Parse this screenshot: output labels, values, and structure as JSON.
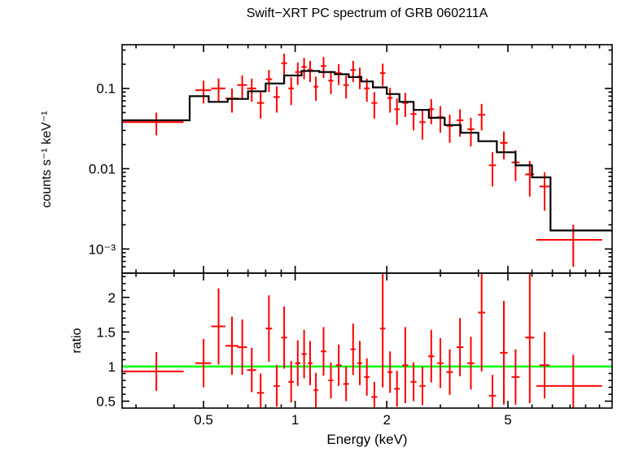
{
  "title": "Swift−XRT PC spectrum of GRB 060211A",
  "colors": {
    "data": "#ff0000",
    "model": "#000000",
    "reference_line": "#00ff00",
    "axis": "#000000",
    "background": "#ffffff"
  },
  "chart_data": {
    "type": "scatter",
    "title": "Swift−XRT PC spectrum of GRB 060211A",
    "xlabel": "Energy (keV)",
    "x_scale": "log",
    "x_range": [
      0.27,
      11.0
    ],
    "x_ticks": [
      0.5,
      1,
      2,
      5
    ],
    "x_tick_labels": [
      "0.5",
      "1",
      "2",
      "5"
    ],
    "legend": "none",
    "grid": false,
    "panels": [
      {
        "name": "spectrum",
        "ylabel": "counts s⁻¹ keV⁻¹",
        "y_scale": "log",
        "y_range": [
          0.0005,
          0.35
        ],
        "y_ticks": [
          0.1,
          0.01,
          0.001
        ],
        "y_tick_labels": [
          "0.1",
          "0.01",
          "10⁻³"
        ],
        "series_name": "observed counts (red crosses: E, ΔE, rate, Δrate)",
        "points": [
          [
            0.35,
            0.08,
            0.038,
            0.012
          ],
          [
            0.5,
            0.03,
            0.095,
            0.03
          ],
          [
            0.56,
            0.03,
            0.1,
            0.033
          ],
          [
            0.62,
            0.03,
            0.075,
            0.025
          ],
          [
            0.67,
            0.025,
            0.11,
            0.035
          ],
          [
            0.72,
            0.025,
            0.1,
            0.032
          ],
          [
            0.77,
            0.02,
            0.066,
            0.024
          ],
          [
            0.82,
            0.02,
            0.13,
            0.04
          ],
          [
            0.87,
            0.02,
            0.078,
            0.028
          ],
          [
            0.92,
            0.02,
            0.205,
            0.065
          ],
          [
            0.97,
            0.02,
            0.1,
            0.038
          ],
          [
            1.02,
            0.02,
            0.16,
            0.05
          ],
          [
            1.07,
            0.02,
            0.185,
            0.055
          ],
          [
            1.12,
            0.02,
            0.17,
            0.05
          ],
          [
            1.17,
            0.02,
            0.105,
            0.035
          ],
          [
            1.24,
            0.025,
            0.19,
            0.055
          ],
          [
            1.31,
            0.025,
            0.125,
            0.04
          ],
          [
            1.39,
            0.03,
            0.155,
            0.045
          ],
          [
            1.47,
            0.03,
            0.11,
            0.035
          ],
          [
            1.55,
            0.03,
            0.17,
            0.05
          ],
          [
            1.63,
            0.03,
            0.14,
            0.042
          ],
          [
            1.72,
            0.035,
            0.1,
            0.032
          ],
          [
            1.82,
            0.04,
            0.066,
            0.024
          ],
          [
            1.94,
            0.04,
            0.155,
            0.048
          ],
          [
            2.05,
            0.04,
            0.076,
            0.026
          ],
          [
            2.16,
            0.045,
            0.055,
            0.02
          ],
          [
            2.3,
            0.05,
            0.066,
            0.022
          ],
          [
            2.45,
            0.055,
            0.048,
            0.018
          ],
          [
            2.62,
            0.06,
            0.038,
            0.015
          ],
          [
            2.8,
            0.065,
            0.055,
            0.019
          ],
          [
            3.0,
            0.07,
            0.044,
            0.016
          ],
          [
            3.22,
            0.08,
            0.034,
            0.013
          ],
          [
            3.48,
            0.09,
            0.04,
            0.015
          ],
          [
            3.78,
            0.1,
            0.031,
            0.012
          ],
          [
            4.1,
            0.11,
            0.047,
            0.017
          ],
          [
            4.45,
            0.12,
            0.011,
            0.005
          ],
          [
            4.85,
            0.14,
            0.021,
            0.008
          ],
          [
            5.3,
            0.16,
            0.012,
            0.005
          ],
          [
            5.9,
            0.2,
            0.0085,
            0.004
          ],
          [
            6.6,
            0.25,
            0.006,
            0.003
          ],
          [
            8.2,
            2.0,
            0.0013,
            0.0007
          ]
        ],
        "model_name": "folded model (black step line: Elo, Ehi, rate)",
        "model_step": [
          [
            0.27,
            0.45,
            0.04
          ],
          [
            0.45,
            0.52,
            0.08
          ],
          [
            0.52,
            0.6,
            0.068
          ],
          [
            0.6,
            0.7,
            0.074
          ],
          [
            0.7,
            0.8,
            0.092
          ],
          [
            0.8,
            0.92,
            0.115
          ],
          [
            0.92,
            1.05,
            0.145
          ],
          [
            1.05,
            1.2,
            0.165
          ],
          [
            1.2,
            1.35,
            0.16
          ],
          [
            1.35,
            1.5,
            0.15
          ],
          [
            1.5,
            1.65,
            0.138
          ],
          [
            1.65,
            1.8,
            0.122
          ],
          [
            1.8,
            2.0,
            0.103
          ],
          [
            2.0,
            2.2,
            0.085
          ],
          [
            2.2,
            2.45,
            0.068
          ],
          [
            2.45,
            2.75,
            0.054
          ],
          [
            2.75,
            3.1,
            0.043
          ],
          [
            3.1,
            3.5,
            0.035
          ],
          [
            3.5,
            4.0,
            0.028
          ],
          [
            4.0,
            4.6,
            0.022
          ],
          [
            4.6,
            5.3,
            0.016
          ],
          [
            5.3,
            6.0,
            0.011
          ],
          [
            6.0,
            6.9,
            0.0078
          ],
          [
            6.9,
            11.0,
            0.0017
          ]
        ]
      },
      {
        "name": "ratio",
        "ylabel": "ratio",
        "y_scale": "linear",
        "y_range": [
          0.4,
          2.35
        ],
        "y_ticks": [
          0.5,
          1,
          1.5,
          2
        ],
        "y_tick_labels": [
          "0.5",
          "1",
          "1.5",
          "2"
        ],
        "reference_line": 1,
        "series_name": "data/model ratio (red crosses: E, ΔE, ratio, Δratio)",
        "points": [
          [
            0.35,
            0.08,
            0.93,
            0.28
          ],
          [
            0.5,
            0.03,
            1.05,
            0.35
          ],
          [
            0.56,
            0.03,
            1.58,
            0.55
          ],
          [
            0.62,
            0.03,
            1.3,
            0.42
          ],
          [
            0.67,
            0.025,
            1.28,
            0.4
          ],
          [
            0.72,
            0.025,
            0.95,
            0.32
          ],
          [
            0.77,
            0.02,
            0.62,
            0.28
          ],
          [
            0.82,
            0.02,
            1.55,
            0.48
          ],
          [
            0.87,
            0.02,
            0.72,
            0.3
          ],
          [
            0.92,
            0.02,
            1.42,
            0.45
          ],
          [
            0.97,
            0.02,
            0.78,
            0.3
          ],
          [
            1.02,
            0.02,
            1.05,
            0.33
          ],
          [
            1.07,
            0.02,
            1.18,
            0.35
          ],
          [
            1.12,
            0.02,
            1.05,
            0.32
          ],
          [
            1.17,
            0.02,
            0.66,
            0.25
          ],
          [
            1.24,
            0.025,
            1.22,
            0.35
          ],
          [
            1.31,
            0.025,
            0.8,
            0.26
          ],
          [
            1.39,
            0.03,
            1.02,
            0.3
          ],
          [
            1.47,
            0.03,
            0.75,
            0.25
          ],
          [
            1.55,
            0.03,
            1.25,
            0.37
          ],
          [
            1.63,
            0.03,
            1.05,
            0.32
          ],
          [
            1.72,
            0.035,
            0.85,
            0.27
          ],
          [
            1.82,
            0.04,
            0.56,
            0.22
          ],
          [
            1.94,
            0.04,
            1.55,
            0.85
          ],
          [
            2.05,
            0.04,
            0.92,
            0.3
          ],
          [
            2.16,
            0.045,
            0.68,
            0.26
          ],
          [
            2.3,
            0.05,
            1.02,
            0.55
          ],
          [
            2.45,
            0.055,
            0.78,
            0.28
          ],
          [
            2.62,
            0.06,
            0.72,
            0.28
          ],
          [
            2.8,
            0.065,
            1.15,
            0.38
          ],
          [
            3.0,
            0.07,
            1.05,
            0.36
          ],
          [
            3.22,
            0.08,
            0.92,
            0.33
          ],
          [
            3.48,
            0.09,
            1.28,
            0.42
          ],
          [
            3.78,
            0.1,
            1.05,
            0.38
          ],
          [
            4.1,
            0.11,
            1.78,
            0.85
          ],
          [
            4.45,
            0.12,
            0.58,
            0.3
          ],
          [
            4.85,
            0.14,
            1.2,
            0.75
          ],
          [
            5.3,
            0.16,
            0.85,
            0.4
          ],
          [
            5.9,
            0.2,
            1.42,
            0.95
          ],
          [
            6.6,
            0.25,
            1.02,
            0.48
          ],
          [
            8.2,
            2.0,
            0.72,
            0.45
          ]
        ]
      }
    ]
  }
}
